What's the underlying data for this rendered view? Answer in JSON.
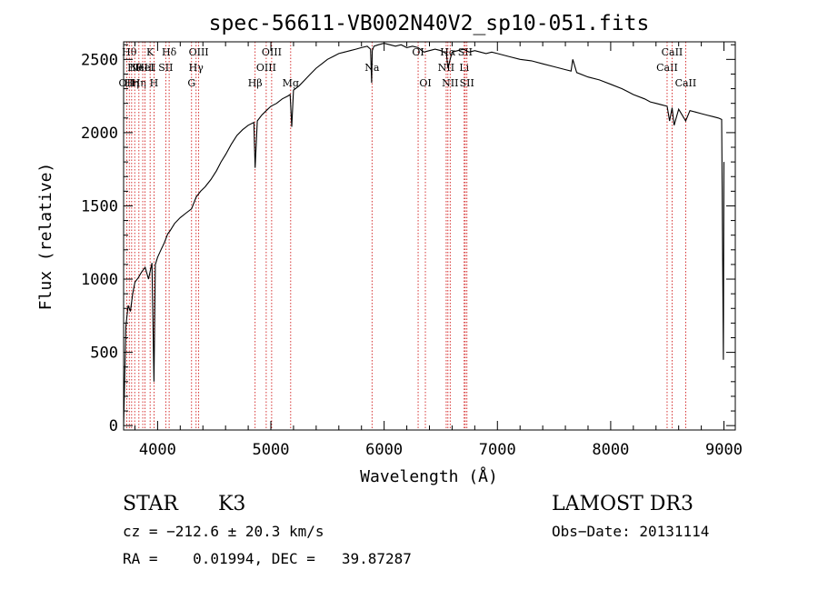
{
  "chart_data": {
    "type": "line",
    "title": "spec-56611-VB002N40V2_sp10-051.fits",
    "xlabel": "Wavelength (Å)",
    "ylabel": "Flux (relative)",
    "xlim": [
      3700,
      9100
    ],
    "ylim": [
      -30,
      2620
    ],
    "xticks": [
      4000,
      5000,
      6000,
      7000,
      8000,
      9000
    ],
    "yticks": [
      0,
      500,
      1000,
      1500,
      2000,
      2500
    ],
    "xtick_labels": [
      "4000",
      "5000",
      "6000",
      "7000",
      "8000",
      "9000"
    ],
    "ytick_labels": [
      "0",
      "500",
      "1000",
      "1500",
      "2000",
      "2500"
    ],
    "series": [
      {
        "name": "flux",
        "x": [
          3700,
          3720,
          3740,
          3760,
          3780,
          3800,
          3830,
          3860,
          3890,
          3920,
          3950,
          3968,
          3980,
          4000,
          4030,
          4060,
          4090,
          4110,
          4150,
          4200,
          4250,
          4300,
          4340,
          4380,
          4420,
          4470,
          4520,
          4560,
          4600,
          4650,
          4700,
          4750,
          4800,
          4850,
          4861,
          4880,
          4920,
          4960,
          5000,
          5050,
          5100,
          5150,
          5170,
          5184,
          5200,
          5250,
          5300,
          5350,
          5400,
          5450,
          5500,
          5550,
          5600,
          5650,
          5700,
          5750,
          5800,
          5850,
          5880,
          5890,
          5895,
          5910,
          5950,
          6000,
          6050,
          6100,
          6150,
          6200,
          6250,
          6300,
          6350,
          6400,
          6450,
          6500,
          6550,
          6563,
          6600,
          6650,
          6700,
          6750,
          6800,
          6850,
          6900,
          6950,
          7000,
          7050,
          7100,
          7200,
          7300,
          7400,
          7500,
          7600,
          7650,
          7665,
          7700,
          7800,
          7900,
          8000,
          8100,
          8150,
          8200,
          8300,
          8350,
          8400,
          8450,
          8498,
          8520,
          8542,
          8560,
          8600,
          8662,
          8700,
          8750,
          8800,
          8850,
          8900,
          8950,
          8980,
          8995,
          9000
        ],
        "y": [
          0,
          680,
          820,
          780,
          900,
          980,
          1010,
          1050,
          1080,
          1000,
          1110,
          300,
          1100,
          1150,
          1200,
          1250,
          1310,
          1330,
          1380,
          1420,
          1450,
          1480,
          1560,
          1600,
          1630,
          1680,
          1740,
          1800,
          1850,
          1920,
          1980,
          2020,
          2050,
          2070,
          1760,
          2080,
          2120,
          2150,
          2180,
          2200,
          2230,
          2250,
          2260,
          2040,
          2290,
          2320,
          2360,
          2400,
          2440,
          2470,
          2500,
          2520,
          2540,
          2550,
          2560,
          2570,
          2580,
          2590,
          2570,
          2340,
          2560,
          2590,
          2600,
          2610,
          2600,
          2590,
          2600,
          2580,
          2590,
          2580,
          2550,
          2560,
          2570,
          2560,
          2540,
          2440,
          2550,
          2560,
          2570,
          2550,
          2560,
          2550,
          2540,
          2550,
          2540,
          2530,
          2520,
          2500,
          2490,
          2470,
          2450,
          2430,
          2420,
          2500,
          2410,
          2380,
          2360,
          2330,
          2300,
          2280,
          2260,
          2230,
          2210,
          2200,
          2190,
          2180,
          2080,
          2170,
          2050,
          2160,
          2080,
          2150,
          2140,
          2130,
          2120,
          2110,
          2100,
          2090,
          450,
          1800
        ]
      }
    ],
    "line_markers": [
      {
        "wavelength": 3727,
        "label": "OII",
        "row": 3
      },
      {
        "wavelength": 3750,
        "label": "Hθ",
        "row": 1
      },
      {
        "wavelength": 3771,
        "label": "Hη",
        "row": 3
      },
      {
        "wavelength": 3798,
        "label": "Hθ",
        "row": 2
      },
      {
        "wavelength": 3835,
        "label": "Hη",
        "row": 3
      },
      {
        "wavelength": 3869,
        "label": "NeIII",
        "row": 2
      },
      {
        "wavelength": 3889,
        "label": "HeI",
        "row": 2
      },
      {
        "wavelength": 3934,
        "label": "K",
        "row": 1
      },
      {
        "wavelength": 3968,
        "label": "H",
        "row": 3
      },
      {
        "wavelength": 4072,
        "label": "SII",
        "row": 2
      },
      {
        "wavelength": 4102,
        "label": "Hδ",
        "row": 1
      },
      {
        "wavelength": 4300,
        "label": "G",
        "row": 3
      },
      {
        "wavelength": 4340,
        "label": "Hγ",
        "row": 2
      },
      {
        "wavelength": 4363,
        "label": "OIII",
        "row": 1
      },
      {
        "wavelength": 4861,
        "label": "Hβ",
        "row": 3
      },
      {
        "wavelength": 4959,
        "label": "OIII",
        "row": 2
      },
      {
        "wavelength": 5007,
        "label": "OIII",
        "row": 1
      },
      {
        "wavelength": 5175,
        "label": "Mg",
        "row": 3
      },
      {
        "wavelength": 5893,
        "label": "Na",
        "row": 2
      },
      {
        "wavelength": 6300,
        "label": "OI",
        "row": 1
      },
      {
        "wavelength": 6364,
        "label": "OI",
        "row": 3
      },
      {
        "wavelength": 6548,
        "label": "NII",
        "row": 2
      },
      {
        "wavelength": 6563,
        "label": "Hα",
        "row": 1
      },
      {
        "wavelength": 6583,
        "label": "NII",
        "row": 3
      },
      {
        "wavelength": 6707,
        "label": "Li",
        "row": 2
      },
      {
        "wavelength": 6716,
        "label": "SII",
        "row": 1
      },
      {
        "wavelength": 6731,
        "label": "SII",
        "row": 3
      },
      {
        "wavelength": 8498,
        "label": "CaII",
        "row": 2
      },
      {
        "wavelength": 8542,
        "label": "CaII",
        "row": 1
      },
      {
        "wavelength": 8662,
        "label": "CaII",
        "row": 3
      }
    ],
    "grid": false
  },
  "info": {
    "object_class": "STAR",
    "subclass": "K3",
    "survey": "LAMOST DR3",
    "velocity": "cz = −212.6 ± 20.3 km/s",
    "obs_date": "Obs−Date: 20131114",
    "coords": "RA =    0.01994, DEC =   39.87287"
  },
  "colors": {
    "spectrum": "#000000",
    "marker_line": "#cc0000",
    "axes": "#000000",
    "background": "#ffffff"
  }
}
